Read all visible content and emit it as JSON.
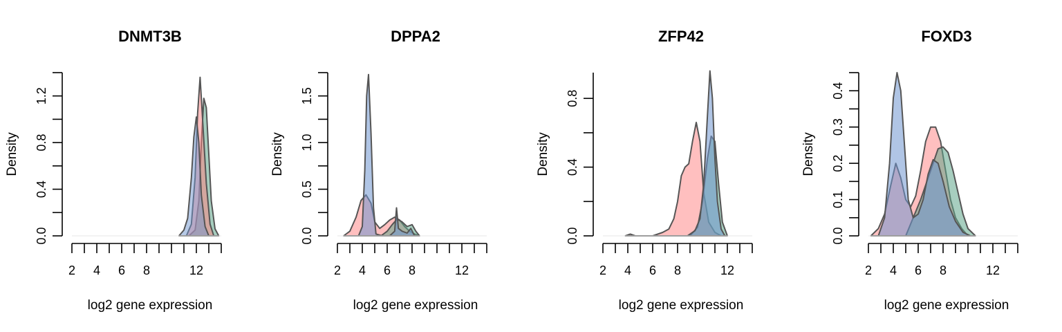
{
  "colors": {
    "red": "#ff7f7f",
    "blue": "#6f95d0",
    "green": "#5fa58a",
    "outline": "#555555"
  },
  "chart_data": [
    {
      "type": "area",
      "title": "DNMT3B",
      "xlabel": "log2 gene expression",
      "ylabel": "Density",
      "xticks": [
        2,
        4,
        6,
        8,
        12
      ],
      "xlim": [
        2,
        14
      ],
      "xaxis_range": [
        2,
        14
      ],
      "yticks": [
        0.0,
        0.4,
        0.8,
        1.2
      ],
      "yaxis_range": [
        0,
        1.4
      ],
      "ylim": [
        0,
        1.4
      ],
      "grid": false,
      "series": [
        {
          "color": "green",
          "opacity": 0.55,
          "x": [
            11.4,
            11.9,
            12.2,
            12.4,
            12.6,
            12.8,
            13.0,
            13.2,
            13.5,
            13.8
          ],
          "y": [
            0.0,
            0.05,
            0.3,
            0.8,
            1.18,
            1.1,
            0.7,
            0.3,
            0.06,
            0.0
          ]
        },
        {
          "color": "red",
          "opacity": 0.5,
          "x": [
            11.2,
            11.6,
            11.9,
            12.1,
            12.3,
            12.5,
            12.8,
            13.1,
            13.4
          ],
          "y": [
            0.0,
            0.1,
            0.5,
            1.05,
            1.36,
            1.0,
            0.45,
            0.1,
            0.0
          ]
        },
        {
          "color": "blue",
          "opacity": 0.5,
          "x": [
            10.6,
            11.0,
            11.3,
            11.6,
            11.8,
            12.0,
            12.2,
            12.4,
            12.7,
            13.0
          ],
          "y": [
            0.0,
            0.05,
            0.15,
            0.5,
            0.85,
            1.02,
            0.8,
            0.35,
            0.08,
            0.0
          ]
        }
      ]
    },
    {
      "type": "area",
      "title": "DPPA2",
      "xlabel": "log2 gene expression",
      "ylabel": "Density",
      "xticks": [
        2,
        4,
        6,
        8,
        12
      ],
      "xlim": [
        2,
        14
      ],
      "xaxis_range": [
        2,
        14
      ],
      "yticks": [
        0.0,
        0.5,
        1.0,
        1.5
      ],
      "yaxis_range": [
        0,
        1.75
      ],
      "ylim": [
        0,
        1.75
      ],
      "grid": false,
      "series": [
        {
          "color": "red",
          "opacity": 0.5,
          "x": [
            2.5,
            3.0,
            3.5,
            3.9,
            4.3,
            4.7,
            5.0,
            5.4,
            5.8,
            6.2,
            6.6,
            7.0,
            7.4,
            7.8,
            8.2,
            8.6
          ],
          "y": [
            0.0,
            0.05,
            0.2,
            0.38,
            0.44,
            0.35,
            0.15,
            0.08,
            0.12,
            0.17,
            0.2,
            0.17,
            0.1,
            0.05,
            0.02,
            0.0
          ]
        },
        {
          "color": "green",
          "opacity": 0.55,
          "x": [
            5.5,
            6.0,
            6.4,
            6.8,
            7.2,
            7.6,
            8.0,
            8.3,
            8.6
          ],
          "y": [
            0.0,
            0.05,
            0.12,
            0.18,
            0.15,
            0.1,
            0.12,
            0.05,
            0.0
          ]
        },
        {
          "color": "blue",
          "opacity": 0.55,
          "x": [
            3.7,
            4.0,
            4.2,
            4.35,
            4.5,
            4.7,
            4.9,
            5.1,
            5.6,
            6.2,
            6.6,
            6.75,
            6.9,
            7.2,
            7.6,
            7.9,
            8.2
          ],
          "y": [
            0.0,
            0.1,
            0.7,
            1.5,
            1.73,
            1.1,
            0.3,
            0.02,
            0.0,
            0.0,
            0.05,
            0.3,
            0.08,
            0.05,
            0.03,
            0.08,
            0.0
          ]
        }
      ]
    },
    {
      "type": "area",
      "title": "ZFP42",
      "xlabel": "log2 gene expression",
      "ylabel": "Density",
      "xticks": [
        2,
        4,
        6,
        8,
        12
      ],
      "xlim": [
        2,
        14
      ],
      "xaxis_range": [
        2,
        14
      ],
      "yticks": [
        0.0,
        0.4,
        0.8
      ],
      "yaxis_range": [
        0,
        0.95
      ],
      "ylim": [
        0,
        0.95
      ],
      "grid": false,
      "series": [
        {
          "color": "red",
          "opacity": 0.5,
          "x": [
            3.8,
            4.2,
            4.6,
            5.2,
            6.0,
            6.8,
            7.3,
            7.7,
            8.0,
            8.3,
            8.6,
            8.9,
            9.2,
            9.5,
            9.8,
            10.1,
            10.5,
            11.0,
            11.5
          ],
          "y": [
            0.0,
            0.01,
            0.0,
            0.0,
            0.0,
            0.02,
            0.04,
            0.1,
            0.2,
            0.35,
            0.4,
            0.42,
            0.55,
            0.66,
            0.55,
            0.25,
            0.08,
            0.02,
            0.0
          ]
        },
        {
          "color": "green",
          "opacity": 0.55,
          "x": [
            9.0,
            9.6,
            10.0,
            10.4,
            10.7,
            11.0,
            11.3,
            11.6,
            12.0
          ],
          "y": [
            0.0,
            0.05,
            0.2,
            0.45,
            0.58,
            0.55,
            0.3,
            0.08,
            0.0
          ]
        },
        {
          "color": "blue",
          "opacity": 0.55,
          "x": [
            8.8,
            9.4,
            9.8,
            10.1,
            10.4,
            10.6,
            10.8,
            11.0,
            11.2,
            11.5,
            11.8
          ],
          "y": [
            0.0,
            0.03,
            0.1,
            0.3,
            0.7,
            0.96,
            0.8,
            0.45,
            0.2,
            0.04,
            0.0
          ]
        }
      ]
    },
    {
      "type": "area",
      "title": "FOXD3",
      "xlabel": "log2 gene expression",
      "ylabel": "Density",
      "xticks": [
        2,
        4,
        6,
        8,
        12
      ],
      "xlim": [
        2,
        14
      ],
      "xaxis_range": [
        2,
        14
      ],
      "yticks": [
        0.0,
        0.1,
        0.2,
        0.3,
        0.4
      ],
      "yaxis_range": [
        0,
        0.45
      ],
      "ylim": [
        0,
        0.45
      ],
      "grid": false,
      "series": [
        {
          "color": "red",
          "opacity": 0.5,
          "x": [
            2.2,
            2.8,
            3.3,
            3.8,
            4.2,
            4.6,
            5.0,
            5.4,
            5.8,
            6.2,
            6.6,
            7.0,
            7.4,
            7.8,
            8.2,
            8.6,
            9.0,
            9.5,
            10.0
          ],
          "y": [
            0.0,
            0.02,
            0.06,
            0.14,
            0.2,
            0.16,
            0.1,
            0.08,
            0.11,
            0.18,
            0.26,
            0.3,
            0.3,
            0.26,
            0.18,
            0.1,
            0.05,
            0.02,
            0.0
          ]
        },
        {
          "color": "green",
          "opacity": 0.55,
          "x": [
            5.0,
            5.6,
            6.2,
            6.8,
            7.2,
            7.6,
            8.0,
            8.4,
            8.8,
            9.2,
            9.6,
            10.0,
            10.6
          ],
          "y": [
            0.0,
            0.05,
            0.1,
            0.16,
            0.2,
            0.24,
            0.245,
            0.23,
            0.18,
            0.12,
            0.06,
            0.02,
            0.0
          ]
        },
        {
          "color": "blue",
          "opacity": 0.55,
          "x": [
            2.8,
            3.3,
            3.7,
            4.0,
            4.3,
            4.6,
            4.9,
            5.2,
            5.6,
            6.0,
            6.4,
            6.8,
            7.2,
            7.6,
            8.0,
            8.5,
            9.0,
            9.6,
            10.2
          ],
          "y": [
            0.0,
            0.05,
            0.2,
            0.38,
            0.45,
            0.4,
            0.25,
            0.1,
            0.05,
            0.06,
            0.1,
            0.17,
            0.21,
            0.2,
            0.15,
            0.08,
            0.04,
            0.01,
            0.0
          ]
        }
      ]
    }
  ]
}
